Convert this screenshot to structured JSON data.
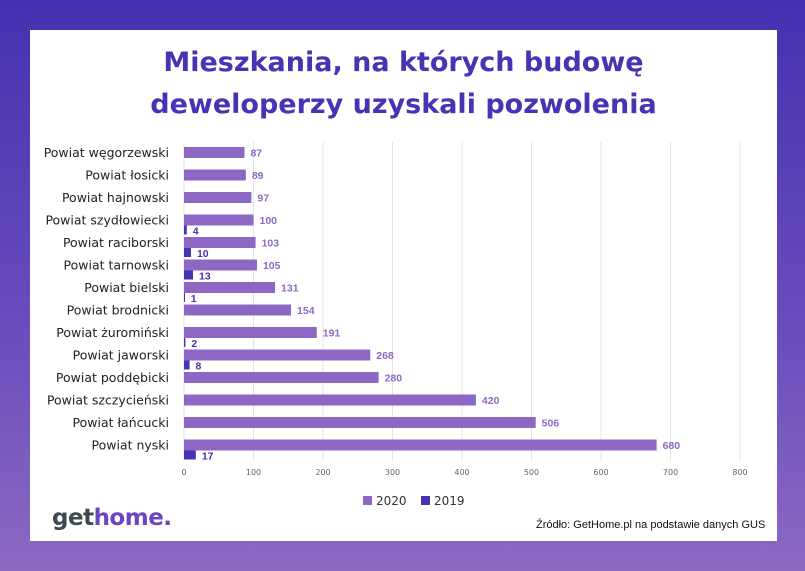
{
  "chart_data": {
    "type": "bar",
    "orientation": "horizontal",
    "title": "Mieszkania, na których budowę deweloperzy uzyskali pozwolenia",
    "title_lines": [
      "Mieszkania, na których budowę",
      "deweloperzy uzyskali pozwolenia"
    ],
    "categories": [
      "Powiat węgorzewski",
      "Powiat łosicki",
      "Powiat hajnowski",
      "Powiat szydłowiecki",
      "Powiat raciborski",
      "Powiat tarnowski",
      "Powiat bielski",
      "Powiat brodnicki",
      "Powiat żuromiński",
      "Powiat jaworski",
      "Powiat poddębicki",
      "Powiat szczycieński",
      "Powiat łańcucki",
      "Powiat nyski"
    ],
    "series": [
      {
        "name": "2020",
        "color": "#8c68c4",
        "values": [
          87,
          89,
          97,
          100,
          103,
          105,
          131,
          154,
          191,
          268,
          280,
          420,
          506,
          680
        ]
      },
      {
        "name": "2019",
        "color": "#4a32b4",
        "values": [
          null,
          null,
          null,
          4,
          10,
          13,
          1,
          null,
          2,
          8,
          null,
          null,
          null,
          17
        ]
      }
    ],
    "xlim": [
      0,
      800
    ],
    "xticks": [
      0,
      100,
      200,
      300,
      400,
      500,
      600,
      700,
      800
    ],
    "grid": true,
    "legend": "bottom"
  },
  "logo": {
    "part1": "get",
    "part2": "home."
  },
  "source": "Źródło: GetHome.pl na podstawie danych GUS",
  "colors": {
    "brand": "#4a32b4",
    "accent": "#8c68c4",
    "logo_dark": "#3d4a4f"
  }
}
